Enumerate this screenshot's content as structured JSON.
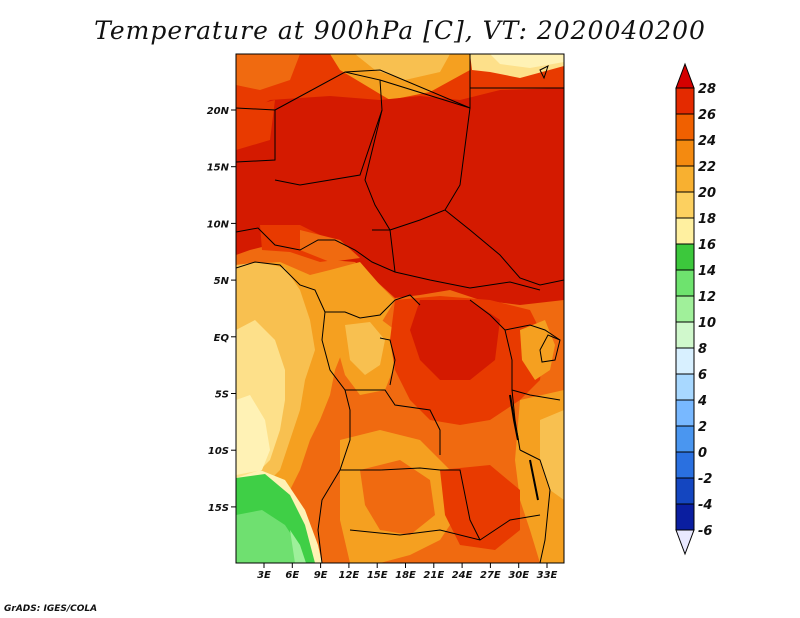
{
  "title": "Temperature at 900hPa [C], VT: 2020040200",
  "credit": "GrADS: IGES/COLA",
  "map": {
    "lat_ticks": [
      "20N",
      "15N",
      "10N",
      "5N",
      "EQ",
      "5S",
      "10S",
      "15S"
    ],
    "lon_ticks": [
      "3E",
      "6E",
      "9E",
      "12E",
      "15E",
      "18E",
      "21E",
      "24E",
      "27E",
      "30E",
      "33E"
    ]
  },
  "colorbar": {
    "labels": [
      "28",
      "26",
      "24",
      "22",
      "20",
      "18",
      "16",
      "14",
      "12",
      "10",
      "8",
      "6",
      "4",
      "2",
      "0",
      "-2",
      "-4",
      "-6"
    ],
    "colors": [
      "#d40000",
      "#e42a00",
      "#f06000",
      "#f48a10",
      "#f8b030",
      "#fcd060",
      "#fff0a0",
      "#3cc83c",
      "#6ee36e",
      "#a0f09a",
      "#d0f8cc",
      "#d8f0ff",
      "#a8d8ff",
      "#78b8ff",
      "#4a96f0",
      "#2a70e0",
      "#1446c0",
      "#0a1ea0",
      "#00006a",
      "#e8e8ff"
    ]
  },
  "palette": {
    "t28": "#d41a00",
    "t26": "#e83a00",
    "t24": "#f06a10",
    "t22": "#f5a020",
    "t20": "#f8c050",
    "t18": "#fde08a",
    "t16": "#fff2b5",
    "t14": "#3fcf46",
    "t12": "#6fe070",
    "t10": "#9ef09a"
  }
}
